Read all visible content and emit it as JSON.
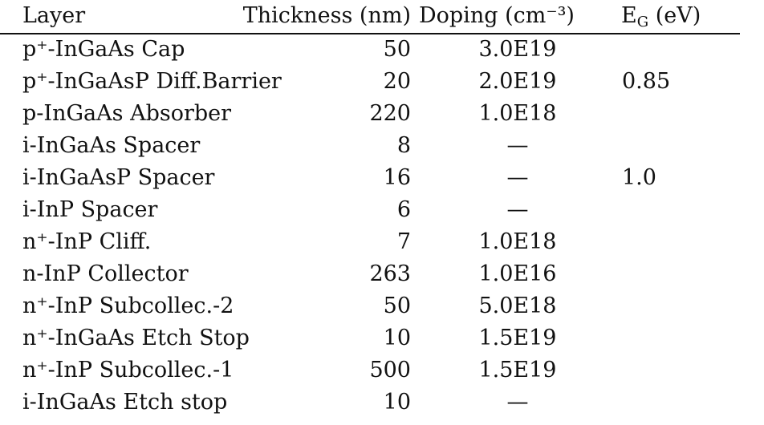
{
  "table": {
    "header": [
      "Layer",
      "Thickness (nm)",
      "Doping (cm⁻³)",
      {
        "main": "E",
        "sub": "G",
        "after": " (eV)"
      }
    ],
    "rows": [
      [
        "p⁺-InGaAs Cap",
        "50",
        "3.0E19",
        null
      ],
      [
        "p⁺-InGaAsP Diff.Barrier",
        "20",
        "2.0E19",
        "0.85"
      ],
      [
        "p-InGaAs Absorber",
        "220",
        "1.0E18",
        null
      ],
      [
        "i-InGaAs Spacer",
        "8",
        "—",
        null
      ],
      [
        "i-InGaAsP Spacer",
        "16",
        "—",
        "1.0"
      ],
      [
        "i-InP Spacer",
        "6",
        "—",
        null
      ],
      [
        "n⁺-InP Cliff.",
        "7",
        "1.0E18",
        null
      ],
      [
        "n-InP Collector",
        "263",
        "1.0E16",
        null
      ],
      [
        "n⁺-InP Subcollec.-2",
        "50",
        "5.0E18",
        null
      ],
      [
        "n⁺-InGaAs Etch Stop",
        "10",
        "1.5E19",
        null
      ],
      [
        "n⁺-InP Subcollec.-1",
        "500",
        "1.5E19",
        null
      ],
      [
        "i-InGaAs Etch stop",
        "10",
        "—",
        null
      ]
    ]
  }
}
